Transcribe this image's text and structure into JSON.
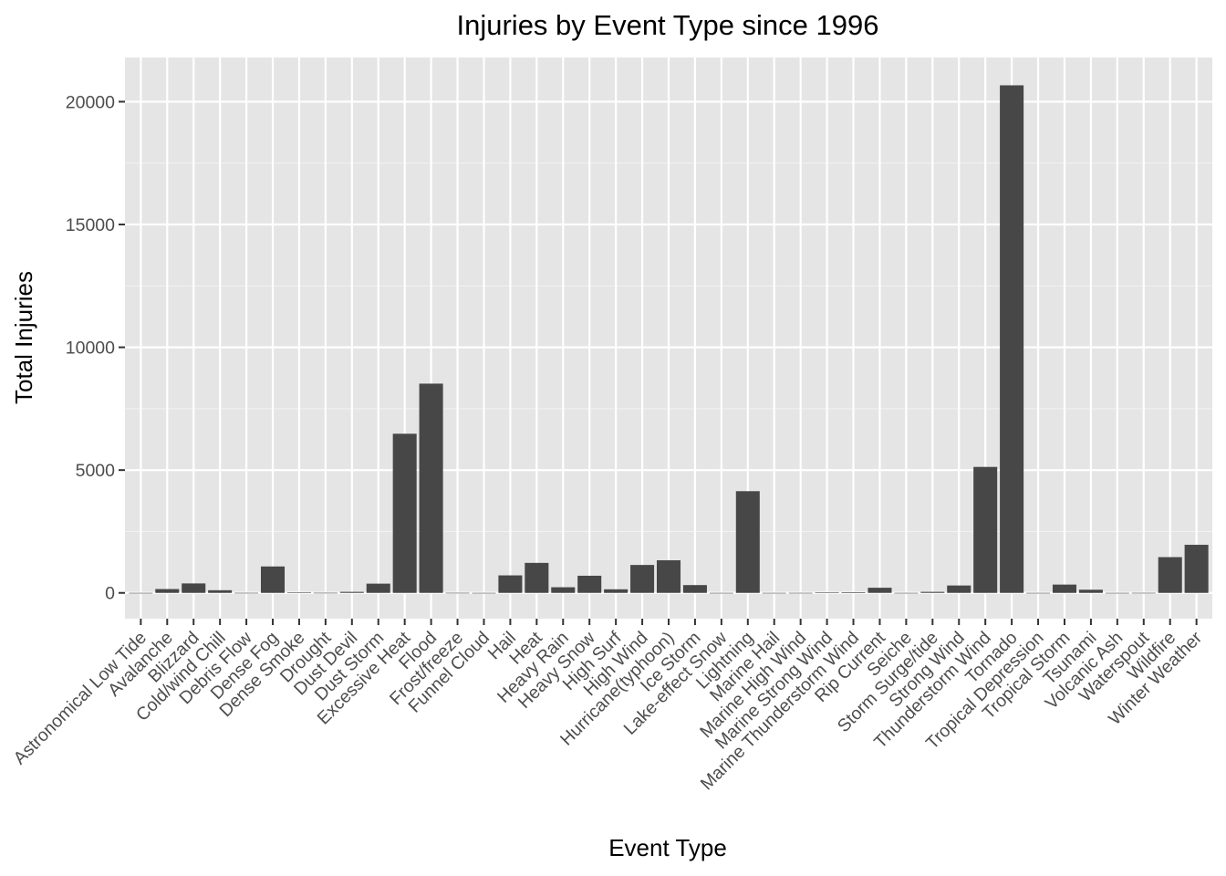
{
  "chart_data": {
    "type": "bar",
    "title": "Injuries by Event Type since 1996",
    "xlabel": "Event Type",
    "ylabel": "Total Injuries",
    "ylim": [
      -1050,
      21800
    ],
    "yticks": [
      0,
      5000,
      10000,
      15000,
      20000
    ],
    "grid": true,
    "legend": "none",
    "bar_color": "#474747",
    "panel_color": "#e5e5e5",
    "categories": [
      "Astronomical Low Tide",
      "Avalanche",
      "Blizzard",
      "Cold/wind Chill",
      "Debris Flow",
      "Dense Fog",
      "Dense Smoke",
      "Drought",
      "Dust Devil",
      "Dust Storm",
      "Excessive Heat",
      "Flood",
      "Frost/freeze",
      "Funnel Cloud",
      "Hail",
      "Heat",
      "Heavy Rain",
      "Heavy Snow",
      "High Surf",
      "High Wind",
      "Hurricane(typhoon)",
      "Ice Storm",
      "Lake-effect Snow",
      "Lightning",
      "Marine Hail",
      "Marine High Wind",
      "Marine Strong Wind",
      "Marine Thunderstorm Wind",
      "Rip Current",
      "Seiche",
      "Storm Surge/tide",
      "Strong Wind",
      "Thunderstorm Wind",
      "Tornado",
      "Tropical Depression",
      "Tropical Storm",
      "Tsunami",
      "Volcanic Ash",
      "Waterspout",
      "Wildfire",
      "Winter Weather"
    ],
    "values": [
      0,
      156,
      385,
      108,
      2,
      1076,
      15,
      4,
      42,
      376,
      6480,
      8520,
      3,
      0,
      713,
      1222,
      230,
      698,
      146,
      1137,
      1328,
      318,
      0,
      4141,
      0,
      1,
      18,
      26,
      209,
      0,
      42,
      301,
      5129,
      20667,
      0,
      338,
      129,
      0,
      2,
      1456,
      1958
    ]
  }
}
